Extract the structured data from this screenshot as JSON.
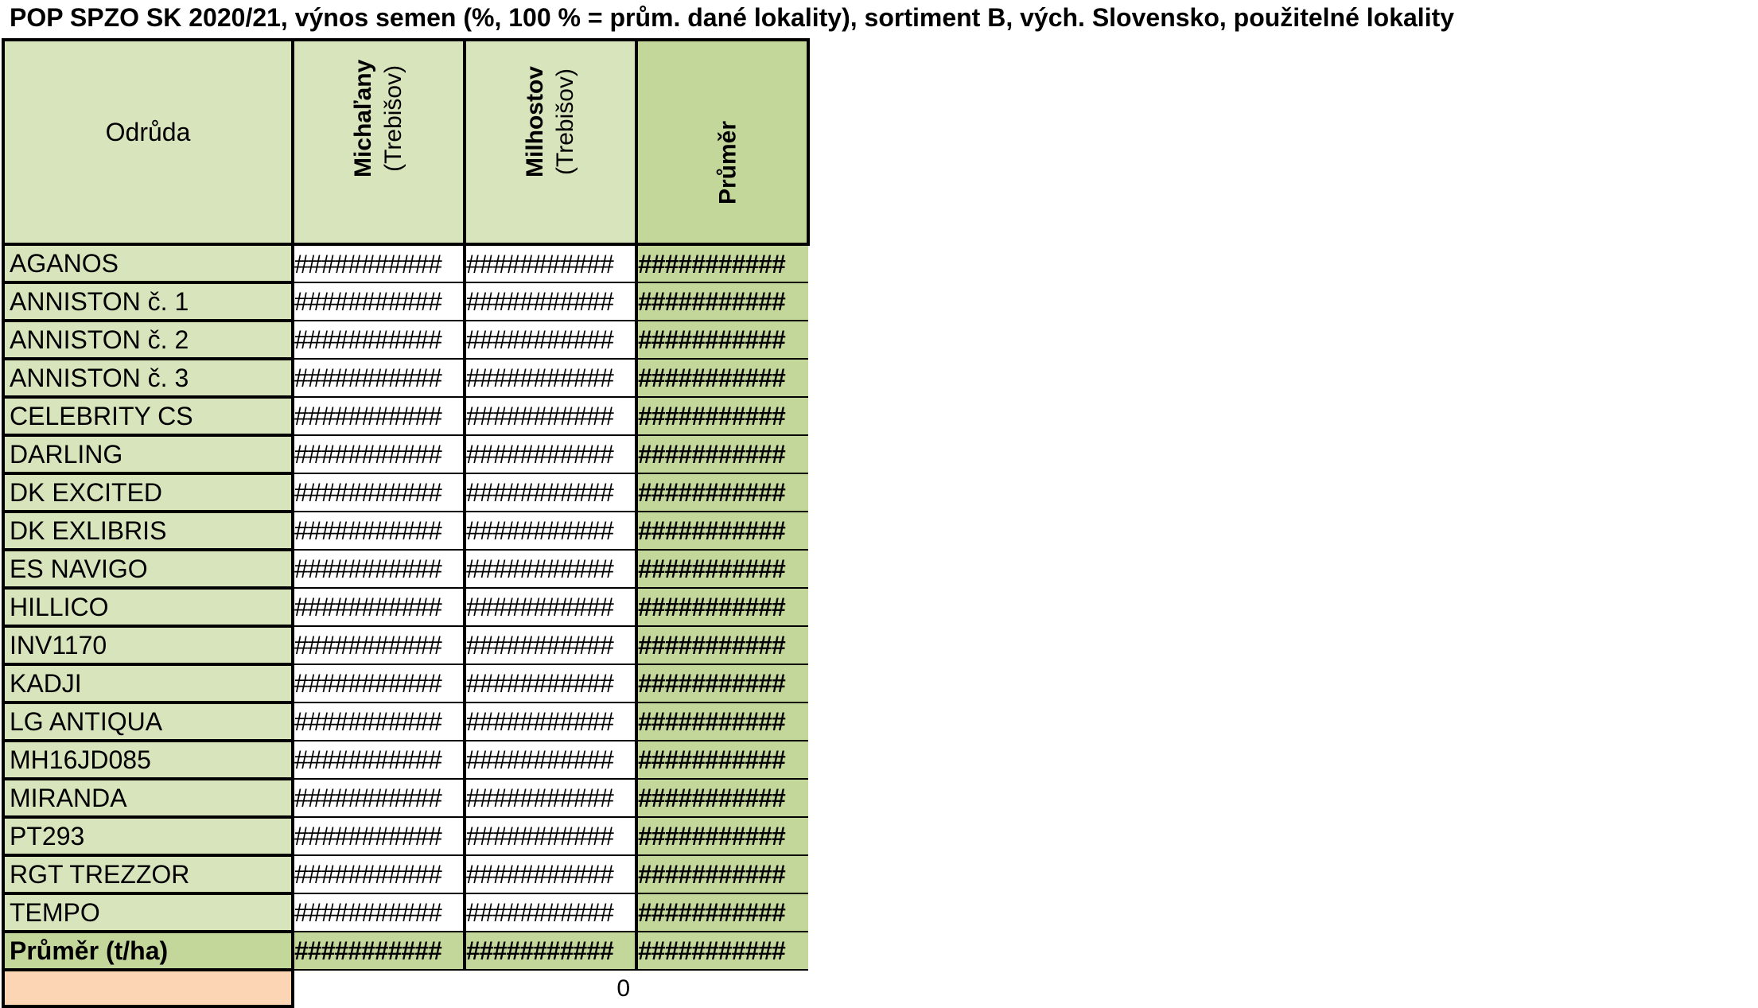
{
  "title": "POP SPZO SK 2020/21, výnos semen (%, 100 % = prům. dané lokality), sortiment B, vých. Slovensko, použitelné lokality",
  "header": {
    "variety": "Odrůda",
    "loc1_name": "Michaľany",
    "loc1_sub": "(Trebišov)",
    "loc2_name": "Milhostov",
    "loc2_sub": "(Trebišov)",
    "avg": "Průměr"
  },
  "overflow_text": "###########",
  "rows": [
    {
      "name": "AGANOS",
      "v1": "###########",
      "v2": "###########",
      "avg": "###########"
    },
    {
      "name": "ANNISTON   č. 1",
      "v1": "###########",
      "v2": "###########",
      "avg": "###########"
    },
    {
      "name": "ANNISTON   č. 2",
      "v1": "###########",
      "v2": "###########",
      "avg": "###########"
    },
    {
      "name": "ANNISTON   č. 3",
      "v1": "###########",
      "v2": "###########",
      "avg": "###########"
    },
    {
      "name": "CELEBRITY CS",
      "v1": "###########",
      "v2": "###########",
      "avg": "###########"
    },
    {
      "name": "DARLING",
      "v1": "###########",
      "v2": "###########",
      "avg": "###########"
    },
    {
      "name": "DK EXCITED",
      "v1": "###########",
      "v2": "###########",
      "avg": "###########"
    },
    {
      "name": "DK EXLIBRIS",
      "v1": "###########",
      "v2": "###########",
      "avg": "###########"
    },
    {
      "name": "ES NAVIGO",
      "v1": "###########",
      "v2": "###########",
      "avg": "###########"
    },
    {
      "name": "HILLICO",
      "v1": "###########",
      "v2": "###########",
      "avg": "###########"
    },
    {
      "name": "INV1170",
      "v1": "###########",
      "v2": "###########",
      "avg": "###########"
    },
    {
      "name": "KADJI",
      "v1": "###########",
      "v2": "###########",
      "avg": "###########"
    },
    {
      "name": "LG ANTIQUA",
      "v1": "###########",
      "v2": "###########",
      "avg": "###########"
    },
    {
      "name": "MH16JD085",
      "v1": "###########",
      "v2": "###########",
      "avg": "###########"
    },
    {
      "name": "MIRANDA",
      "v1": "###########",
      "v2": "###########",
      "avg": "###########"
    },
    {
      "name": "PT293",
      "v1": "###########",
      "v2": "###########",
      "avg": "###########"
    },
    {
      "name": "RGT TREZZOR",
      "v1": "###########",
      "v2": "###########",
      "avg": "###########"
    },
    {
      "name": "TEMPO",
      "v1": "###########",
      "v2": "###########",
      "avg": "###########"
    }
  ],
  "mean_row": {
    "name": "Průměr (t/ha)",
    "v1": "###########",
    "v2": "###########",
    "avg": "###########"
  },
  "footer": {
    "zero": "0"
  },
  "colors": {
    "label_green": "#d8e4bc",
    "avg_green": "#c4d79b",
    "peach": "#fcd5b4"
  }
}
